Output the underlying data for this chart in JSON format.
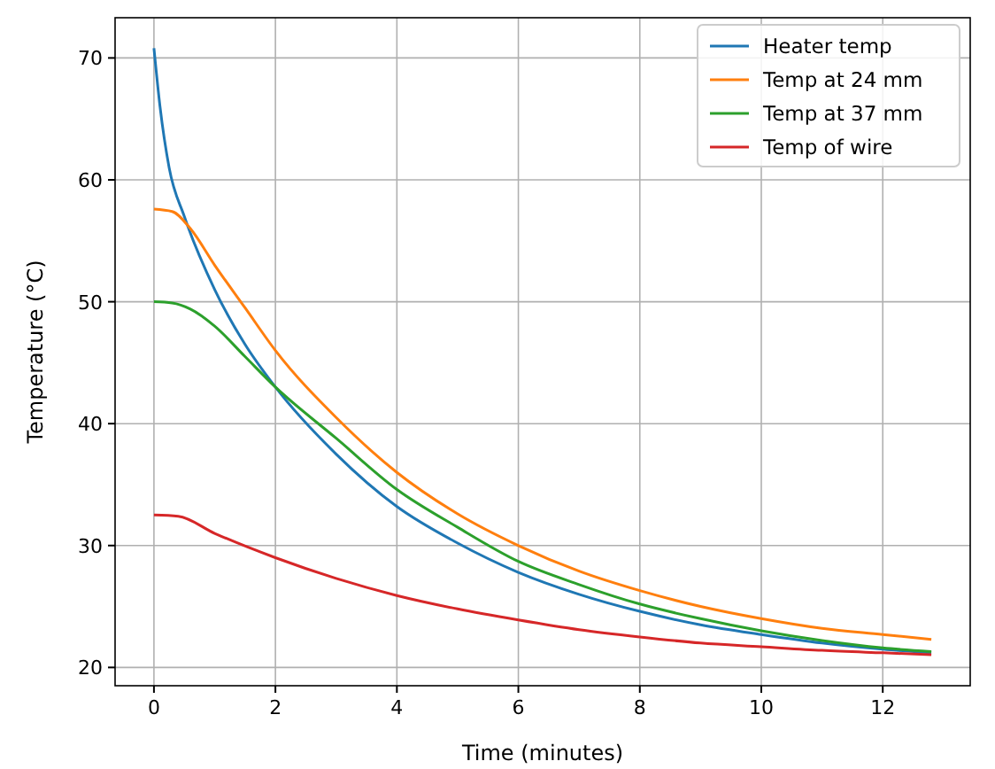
{
  "chart_data": {
    "type": "line",
    "xlabel": "Time (minutes)",
    "ylabel": "Temperature (°C)",
    "xlim": [
      -0.64,
      13.44
    ],
    "ylim": [
      18.5,
      73.3
    ],
    "xticks": [
      0,
      2,
      4,
      6,
      8,
      10,
      12
    ],
    "yticks": [
      20,
      30,
      40,
      50,
      60,
      70
    ],
    "grid": true,
    "legend": "top right",
    "line_style": "solid",
    "marker": "none",
    "series": [
      {
        "name": "Heater temp",
        "color": "#1f77b4",
        "x": [
          0,
          0.1,
          0.25,
          0.5,
          1,
          1.5,
          2,
          3,
          4,
          5,
          6,
          7,
          8,
          9,
          10,
          11,
          12,
          12.8
        ],
        "values": [
          70.8,
          66,
          61,
          57,
          51,
          46.5,
          43,
          37.5,
          33.2,
          30.2,
          27.8,
          26,
          24.6,
          23.5,
          22.7,
          22,
          21.5,
          21.2
        ]
      },
      {
        "name": "Temp at 24 mm",
        "color": "#ff7f0e",
        "x": [
          0,
          0.3,
          0.6,
          1,
          1.5,
          2,
          3,
          4,
          5,
          6,
          7,
          8,
          9,
          10,
          11,
          12,
          12.8
        ],
        "values": [
          57.6,
          57.4,
          56,
          53,
          49.5,
          46,
          40.5,
          36,
          32.6,
          30,
          27.9,
          26.3,
          25,
          24,
          23.2,
          22.7,
          22.3
        ]
      },
      {
        "name": "Temp at 37 mm",
        "color": "#2ca02c",
        "x": [
          0,
          0.3,
          0.6,
          1,
          1.5,
          2,
          3,
          4,
          5,
          6,
          7,
          8,
          9,
          10,
          11,
          12,
          12.8
        ],
        "values": [
          50,
          49.9,
          49.4,
          48,
          45.5,
          43,
          38.8,
          34.6,
          31.5,
          28.7,
          26.8,
          25.2,
          24,
          23,
          22.2,
          21.6,
          21.3
        ]
      },
      {
        "name": "Temp of wire",
        "color": "#d62728",
        "x": [
          0,
          0.4,
          1,
          2,
          3,
          4,
          5,
          6,
          7,
          8,
          9,
          10,
          11,
          12,
          12.8
        ],
        "values": [
          32.5,
          32.4,
          31,
          29,
          27.3,
          25.9,
          24.8,
          23.9,
          23.1,
          22.5,
          22,
          21.7,
          21.4,
          21.2,
          21.05
        ]
      }
    ]
  }
}
